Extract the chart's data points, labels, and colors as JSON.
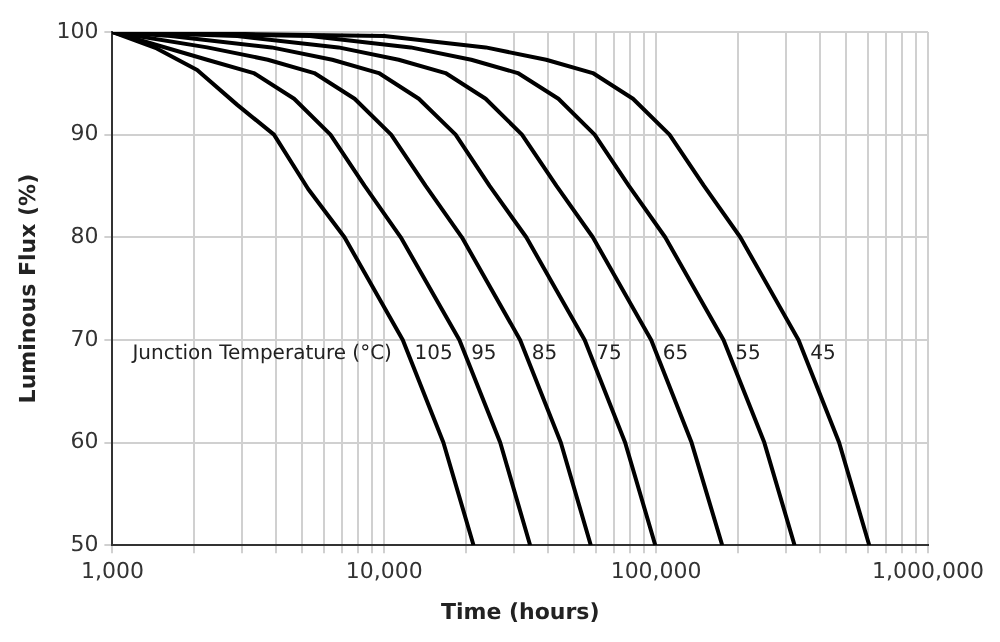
{
  "chart_data": {
    "type": "line",
    "xlabel": "Time (hours)",
    "ylabel": "Luminous Flux (%)",
    "log": "x",
    "grid": true,
    "legend": false,
    "marker": "none",
    "line_style": "solid",
    "xlim": [
      1000,
      1000000
    ],
    "ylim": [
      50,
      100
    ],
    "xticks": [
      {
        "value": 1000,
        "label": "1,000"
      },
      {
        "value": 2000,
        "label": null
      },
      {
        "value": 3000,
        "label": null
      },
      {
        "value": 4000,
        "label": null
      },
      {
        "value": 5000,
        "label": null
      },
      {
        "value": 6000,
        "label": null
      },
      {
        "value": 7000,
        "label": null
      },
      {
        "value": 8000,
        "label": null
      },
      {
        "value": 9000,
        "label": null
      },
      {
        "value": 10000,
        "label": "10,000"
      },
      {
        "value": 20000,
        "label": null
      },
      {
        "value": 30000,
        "label": null
      },
      {
        "value": 40000,
        "label": null
      },
      {
        "value": 50000,
        "label": null
      },
      {
        "value": 60000,
        "label": null
      },
      {
        "value": 70000,
        "label": null
      },
      {
        "value": 80000,
        "label": null
      },
      {
        "value": 90000,
        "label": null
      },
      {
        "value": 100000,
        "label": "100,000"
      },
      {
        "value": 200000,
        "label": null
      },
      {
        "value": 300000,
        "label": null
      },
      {
        "value": 400000,
        "label": null
      },
      {
        "value": 500000,
        "label": null
      },
      {
        "value": 600000,
        "label": null
      },
      {
        "value": 700000,
        "label": null
      },
      {
        "value": 800000,
        "label": null
      },
      {
        "value": 900000,
        "label": null
      },
      {
        "value": 1000000,
        "label": "1,000,000"
      }
    ],
    "yticks": [
      50,
      60,
      70,
      80,
      90,
      100
    ],
    "annotations": [
      "Junction Temperature (°C)"
    ],
    "series": [
      {
        "name": "105",
        "color": "#000000",
        "x": [
          1000,
          1456,
          2050,
          2880,
          3930,
          5250,
          7140,
          11700,
          16500,
          21300
        ],
        "values": [
          100,
          98.4,
          96.3,
          92.9,
          90,
          84.7,
          80,
          70,
          60,
          50
        ]
      },
      {
        "name": "95",
        "color": "#000000",
        "x": [
          1000,
          2230,
          3310,
          4660,
          6340,
          8470,
          11500,
          18900,
          26700,
          34400
        ],
        "values": [
          100,
          97.3,
          96,
          93.5,
          90,
          85,
          80,
          70,
          60,
          50
        ]
      },
      {
        "name": "85",
        "color": "#000000",
        "x": [
          1000,
          2230,
          3730,
          5530,
          7780,
          10600,
          14200,
          19300,
          31600,
          44600,
          57500
        ],
        "values": [
          100,
          98.5,
          97.3,
          96,
          93.5,
          90,
          85,
          80,
          70,
          60,
          50
        ]
      },
      {
        "name": "75",
        "color": "#000000",
        "x": [
          1000,
          1640,
          3850,
          6440,
          9550,
          13400,
          18300,
          24400,
          33300,
          54600,
          76900,
          99300
        ],
        "values": [
          100,
          99.6,
          98.5,
          97.3,
          96,
          93.5,
          90,
          85,
          80,
          70,
          60,
          50
        ]
      },
      {
        "name": "65",
        "color": "#000000",
        "x": [
          1000,
          2880,
          6780,
          11300,
          16800,
          23600,
          32100,
          43000,
          58500,
          95900,
          135000,
          175000
        ],
        "values": [
          100,
          99.6,
          98.5,
          97.3,
          96,
          93.5,
          90,
          85,
          80,
          70,
          60,
          50
        ]
      },
      {
        "name": "55",
        "color": "#000000",
        "x": [
          1000,
          5330,
          12500,
          20900,
          31000,
          43700,
          59400,
          79400,
          108000,
          177000,
          250000,
          323000
        ],
        "values": [
          100,
          99.6,
          98.5,
          97.3,
          96,
          93.5,
          90,
          85,
          80,
          70,
          60,
          50
        ]
      },
      {
        "name": "45",
        "color": "#000000",
        "x": [
          1000,
          10000,
          23600,
          39400,
          58500,
          82200,
          112000,
          150000,
          204000,
          334000,
          471000,
          608000
        ],
        "values": [
          100,
          99.6,
          98.5,
          97.3,
          96,
          93.5,
          90,
          85,
          80,
          70,
          60,
          50
        ]
      }
    ]
  }
}
